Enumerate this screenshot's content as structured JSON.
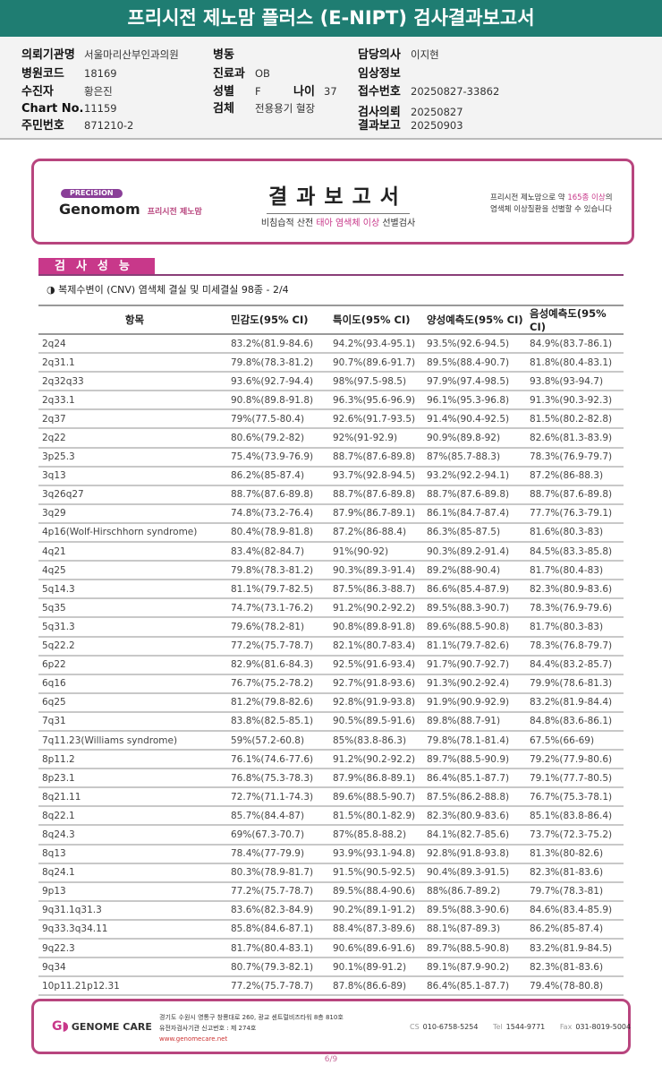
{
  "header": {
    "title": "프리시전 제노맘 플러스 (E-NIPT) 검사결과보고서"
  },
  "patient": {
    "hospital_label": "의뢰기관명",
    "hospital": "서울마리산부인과의원",
    "code_label": "병원코드",
    "code": "18169",
    "name_label": "수진자",
    "name": "황은진",
    "chart_label": "Chart No.",
    "chart": "11159",
    "id_label": "주민번호",
    "id": "871210-2",
    "ward_label": "병동",
    "ward": "",
    "dept_label": "진료과",
    "dept": "OB",
    "sex_label": "성별",
    "sex": "F",
    "age_label": "나이",
    "age": "37",
    "specimen_label": "검체",
    "specimen": "전용용기 혈장",
    "doctor_label": "담당의사",
    "doctor": "이지현",
    "clinical_label": "임상정보",
    "clinical": "",
    "receipt_label": "접수번호",
    "receipt": "20250827-33862",
    "request_label": "검사의뢰",
    "request": "20250827",
    "report_label": "결과보고",
    "report": "20250903"
  },
  "banner": {
    "precision": "PRECISION",
    "brand": "Genomom",
    "brand_kr": "프리시전 제노맘",
    "title": "결과보고서",
    "sub_a": "비침습적 산전 ",
    "sub_b": "태아 염색체 이상",
    "sub_c": " 선별검사",
    "right_a": "프리시전 제노맘으로 약 ",
    "right_b": "165종 이상",
    "right_c": "의",
    "right_d": "염색체 이상질환을 선별할 수 있습니다"
  },
  "section": {
    "title": "검사성능",
    "subtitle": "◑ 복제수변이 (CNV) 염색체 결실 및 미세결실 98종 - 2/4"
  },
  "table": {
    "headers": [
      "항목",
      "민감도(95% CI)",
      "특이도(95% CI)",
      "양성예측도(95% CI)",
      "음성예측도(95% CI)"
    ],
    "rows": [
      [
        "2q24",
        "83.2%(81.9-84.6)",
        "94.2%(93.4-95.1)",
        "93.5%(92.6-94.5)",
        "84.9%(83.7-86.1)"
      ],
      [
        "2q31.1",
        "79.8%(78.3-81.2)",
        "90.7%(89.6-91.7)",
        "89.5%(88.4-90.7)",
        "81.8%(80.4-83.1)"
      ],
      [
        "2q32q33",
        "93.6%(92.7-94.4)",
        "98%(97.5-98.5)",
        "97.9%(97.4-98.5)",
        "93.8%(93-94.7)"
      ],
      [
        "2q33.1",
        "90.8%(89.8-91.8)",
        "96.3%(95.6-96.9)",
        "96.1%(95.3-96.8)",
        "91.3%(90.3-92.3)"
      ],
      [
        "2q37",
        "79%(77.5-80.4)",
        "92.6%(91.7-93.5)",
        "91.4%(90.4-92.5)",
        "81.5%(80.2-82.8)"
      ],
      [
        "2q22",
        "80.6%(79.2-82)",
        "92%(91-92.9)",
        "90.9%(89.8-92)",
        "82.6%(81.3-83.9)"
      ],
      [
        "3p25.3",
        "75.4%(73.9-76.9)",
        "88.7%(87.6-89.8)",
        "87%(85.7-88.3)",
        "78.3%(76.9-79.7)"
      ],
      [
        "3q13",
        "86.2%(85-87.4)",
        "93.7%(92.8-94.5)",
        "93.2%(92.2-94.1)",
        "87.2%(86-88.3)"
      ],
      [
        "3q26q27",
        "88.7%(87.6-89.8)",
        "88.7%(87.6-89.8)",
        "88.7%(87.6-89.8)",
        "88.7%(87.6-89.8)"
      ],
      [
        "3q29",
        "74.8%(73.2-76.4)",
        "87.9%(86.7-89.1)",
        "86.1%(84.7-87.4)",
        "77.7%(76.3-79.1)"
      ],
      [
        "4p16(Wolf-Hirschhorn syndrome)",
        "80.4%(78.9-81.8)",
        "87.2%(86-88.4)",
        "86.3%(85-87.5)",
        "81.6%(80.3-83)"
      ],
      [
        "4q21",
        "83.4%(82-84.7)",
        "91%(90-92)",
        "90.3%(89.2-91.4)",
        "84.5%(83.3-85.8)"
      ],
      [
        "4q25",
        "79.8%(78.3-81.2)",
        "90.3%(89.3-91.4)",
        "89.2%(88-90.4)",
        "81.7%(80.4-83)"
      ],
      [
        "5q14.3",
        "81.1%(79.7-82.5)",
        "87.5%(86.3-88.7)",
        "86.6%(85.4-87.9)",
        "82.3%(80.9-83.6)"
      ],
      [
        "5q35",
        "74.7%(73.1-76.2)",
        "91.2%(90.2-92.2)",
        "89.5%(88.3-90.7)",
        "78.3%(76.9-79.6)"
      ],
      [
        "5q31.3",
        "79.6%(78.2-81)",
        "90.8%(89.8-91.8)",
        "89.6%(88.5-90.8)",
        "81.7%(80.3-83)"
      ],
      [
        "5q22.2",
        "77.2%(75.7-78.7)",
        "82.1%(80.7-83.4)",
        "81.1%(79.7-82.6)",
        "78.3%(76.8-79.7)"
      ],
      [
        "6p22",
        "82.9%(81.6-84.3)",
        "92.5%(91.6-93.4)",
        "91.7%(90.7-92.7)",
        "84.4%(83.2-85.7)"
      ],
      [
        "6q16",
        "76.7%(75.2-78.2)",
        "92.7%(91.8-93.6)",
        "91.3%(90.2-92.4)",
        "79.9%(78.6-81.3)"
      ],
      [
        "6q25",
        "81.2%(79.8-82.6)",
        "92.8%(91.9-93.8)",
        "91.9%(90.9-92.9)",
        "83.2%(81.9-84.4)"
      ],
      [
        "7q31",
        "83.8%(82.5-85.1)",
        "90.5%(89.5-91.6)",
        "89.8%(88.7-91)",
        "84.8%(83.6-86.1)"
      ],
      [
        "7q11.23(Williams syndrome)",
        "59%(57.2-60.8)",
        "85%(83.8-86.3)",
        "79.8%(78.1-81.4)",
        "67.5%(66-69)"
      ],
      [
        "8p11.2",
        "76.1%(74.6-77.6)",
        "91.2%(90.2-92.2)",
        "89.7%(88.5-90.9)",
        "79.2%(77.9-80.6)"
      ],
      [
        "8p23.1",
        "76.8%(75.3-78.3)",
        "87.9%(86.8-89.1)",
        "86.4%(85.1-87.7)",
        "79.1%(77.7-80.5)"
      ],
      [
        "8q21.11",
        "72.7%(71.1-74.3)",
        "89.6%(88.5-90.7)",
        "87.5%(86.2-88.8)",
        "76.7%(75.3-78.1)"
      ],
      [
        "8q22.1",
        "85.7%(84.4-87)",
        "81.5%(80.1-82.9)",
        "82.3%(80.9-83.6)",
        "85.1%(83.8-86.4)"
      ],
      [
        "8q24.3",
        "69%(67.3-70.7)",
        "87%(85.8-88.2)",
        "84.1%(82.7-85.6)",
        "73.7%(72.3-75.2)"
      ],
      [
        "8q13",
        "78.4%(77-79.9)",
        "93.9%(93.1-94.8)",
        "92.8%(91.8-93.8)",
        "81.3%(80-82.6)"
      ],
      [
        "8q24.1",
        "80.3%(78.9-81.7)",
        "91.5%(90.5-92.5)",
        "90.4%(89.3-91.5)",
        "82.3%(81-83.6)"
      ],
      [
        "9p13",
        "77.2%(75.7-78.7)",
        "89.5%(88.4-90.6)",
        "88%(86.7-89.2)",
        "79.7%(78.3-81)"
      ],
      [
        "9q31.1q31.3",
        "83.6%(82.3-84.9)",
        "90.2%(89.1-91.2)",
        "89.5%(88.3-90.6)",
        "84.6%(83.4-85.9)"
      ],
      [
        "9q33.3q34.11",
        "85.8%(84.6-87.1)",
        "88.4%(87.3-89.6)",
        "88.1%(87-89.3)",
        "86.2%(85-87.4)"
      ],
      [
        "9q22.3",
        "81.7%(80.4-83.1)",
        "90.6%(89.6-91.6)",
        "89.7%(88.5-90.8)",
        "83.2%(81.9-84.5)"
      ],
      [
        "9q34",
        "80.7%(79.3-82.1)",
        "90.1%(89-91.2)",
        "89.1%(87.9-90.2)",
        "82.3%(81-83.6)"
      ],
      [
        "10p11.21p12.31",
        "77.2%(75.7-78.7)",
        "87.8%(86.6-89)",
        "86.4%(85.1-87.7)",
        "79.4%(78-80.8)"
      ]
    ]
  },
  "footer": {
    "company": "GENOME CARE",
    "address": "경기도 수원시 영통구 창룡대로 260, 광교 센트럴비즈타워 8층 810호",
    "license": "유전자검사기관 신고번호 : 제 274호",
    "website": "www.genomecare.net",
    "cs_label": "CS",
    "cs": "010-6758-5254",
    "tel_label": "Tel",
    "tel": "1544-9771",
    "fax_label": "Fax",
    "fax": "031-8019-5004"
  },
  "page": {
    "number": "6/9"
  },
  "colors": {
    "header": "#1f7d72",
    "accent": "#c8388a",
    "border": "#b8457e"
  }
}
